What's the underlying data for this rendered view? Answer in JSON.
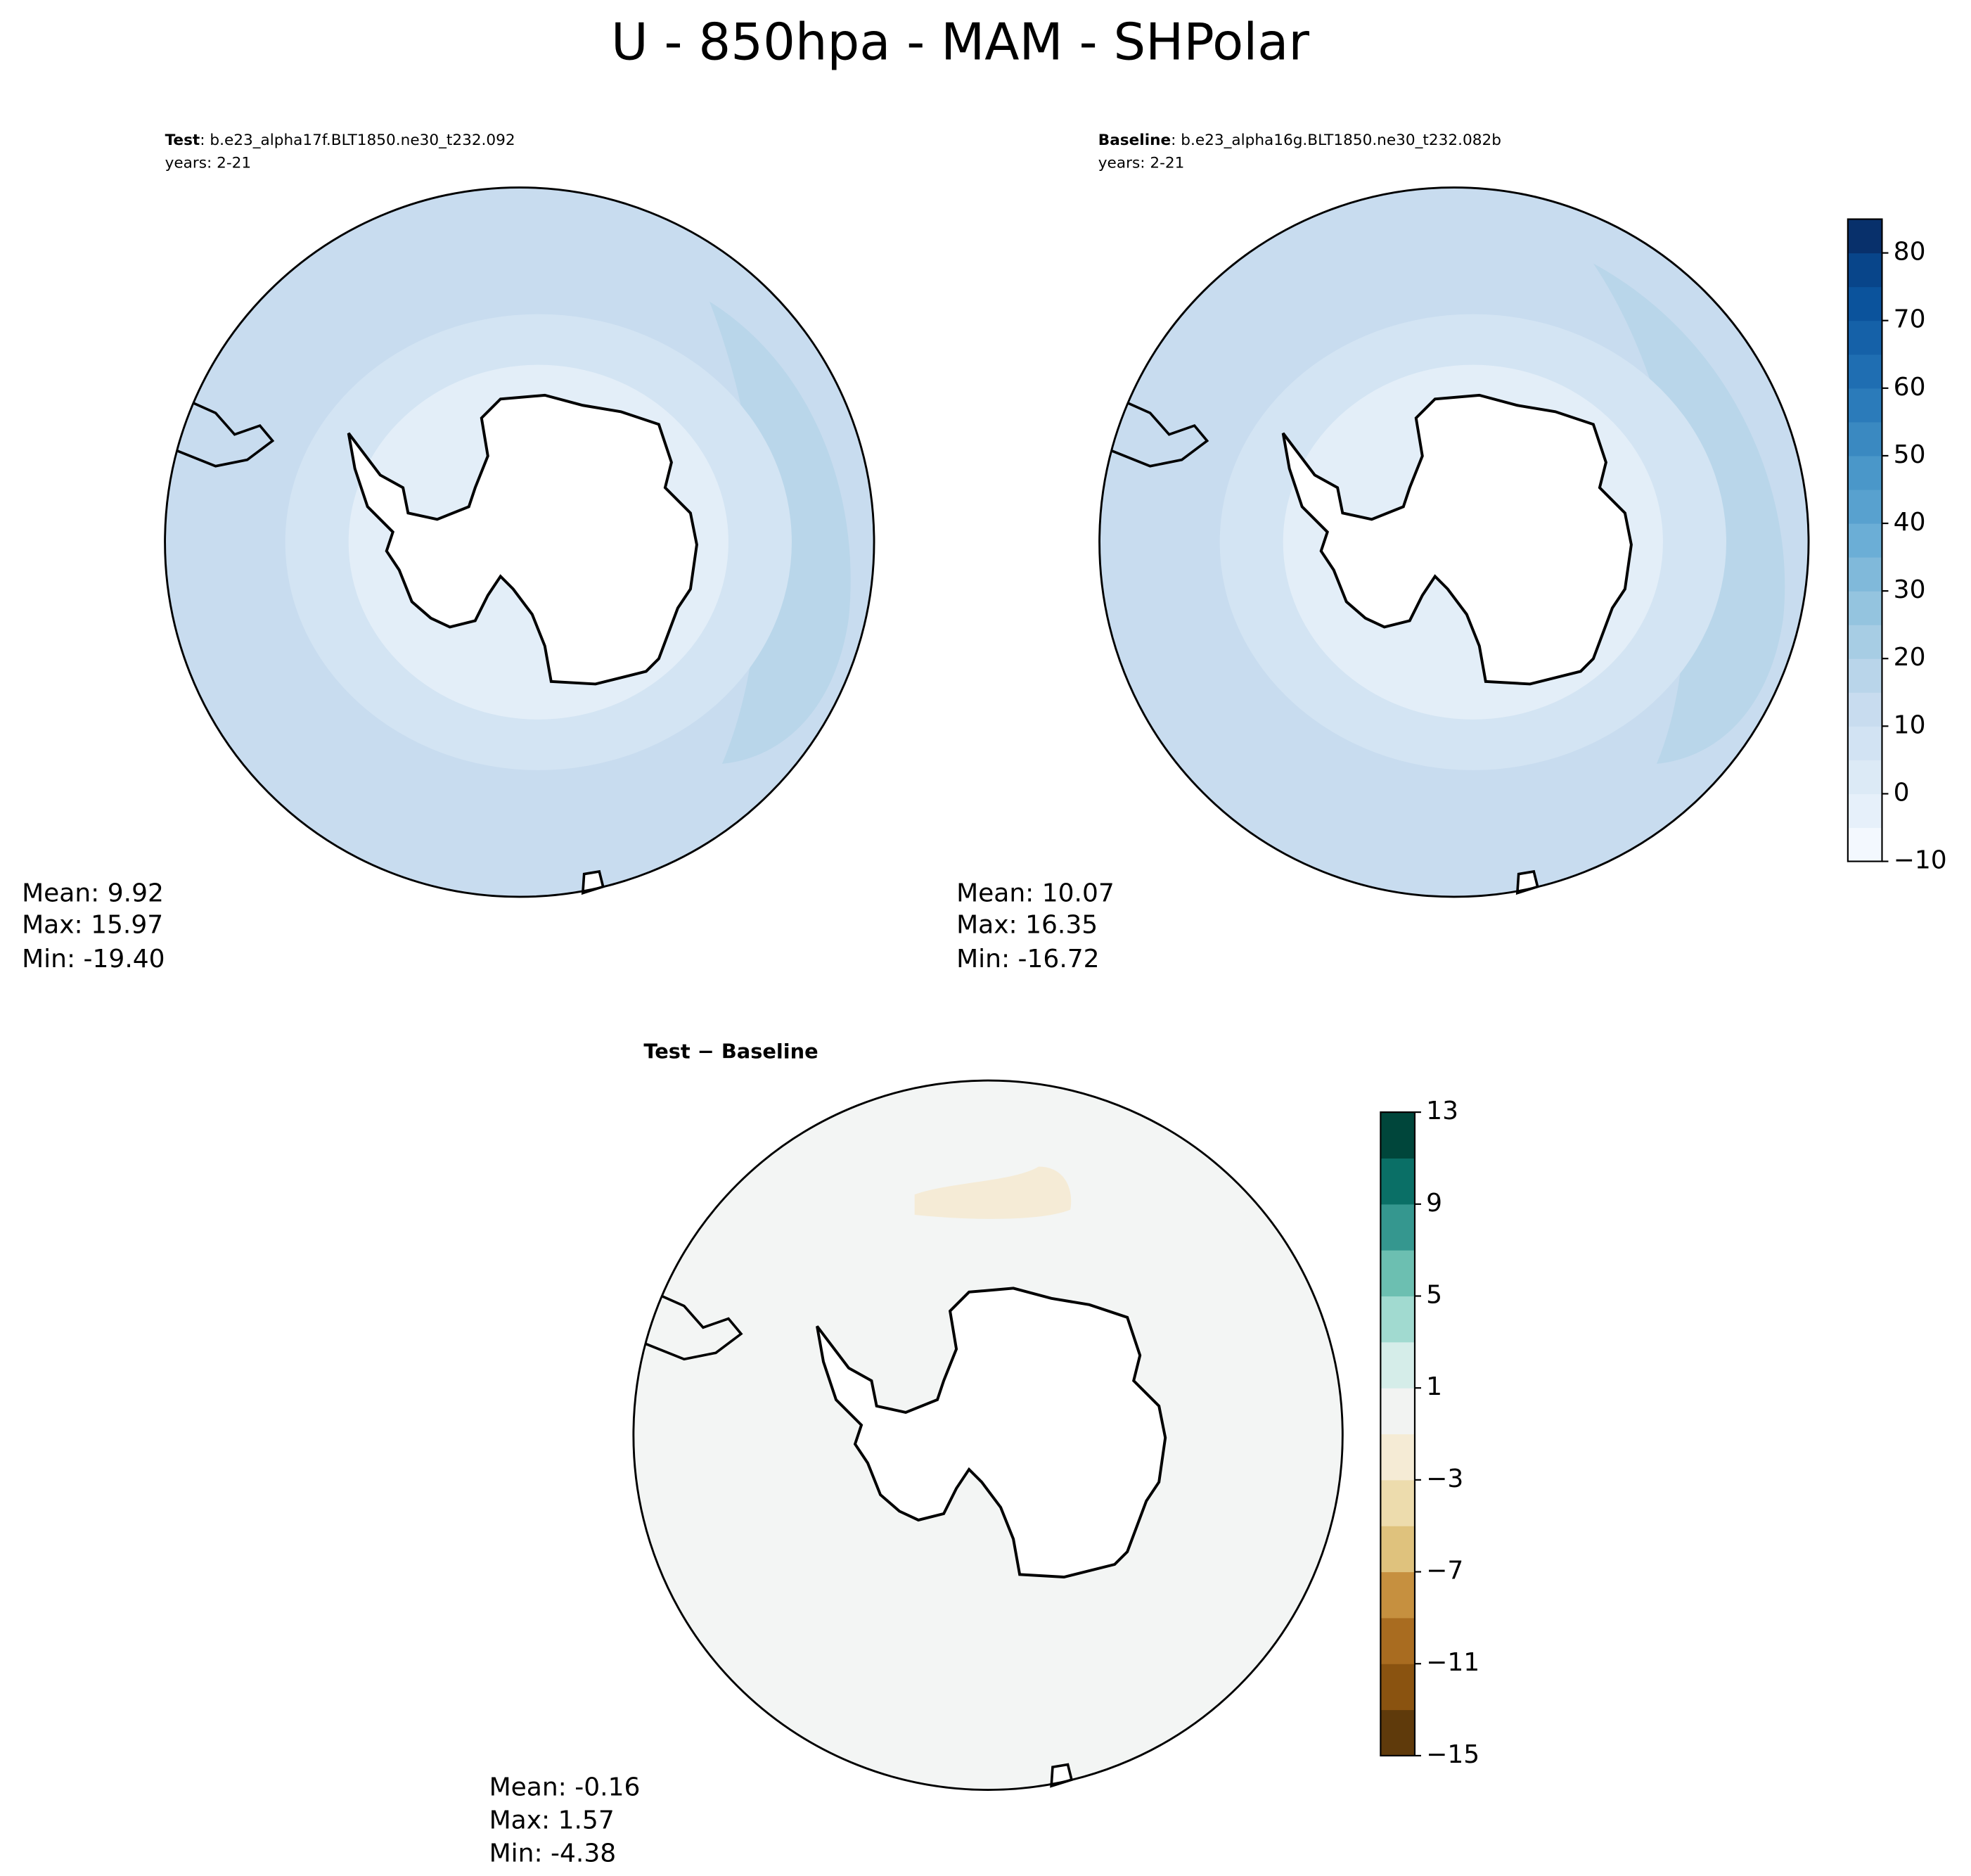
{
  "title": "U - 850hpa - MAM - SHPolar",
  "panels": [
    {
      "label": "Test",
      "case": ": b.e23_alpha17f.BLT1850.ne30_t232.092",
      "years": "years: 2-21",
      "stats": [
        "Mean:  9.92",
        "Max: 15.97",
        "Min: -19.40"
      ]
    },
    {
      "label": "Baseline",
      "case": ": b.e23_alpha16g.BLT1850.ne30_t232.082b",
      "years": "years: 2-21",
      "stats": [
        "Mean: 10.07",
        "Max: 16.35",
        "Min: -16.72"
      ]
    },
    {
      "label": "Test − Baseline",
      "stats": [
        "Mean: -0.16",
        "Max:  1.57",
        "Min: -4.38"
      ]
    }
  ],
  "colorbars": [
    {
      "ylim": [
        -10,
        85
      ],
      "yticks": [
        {
          "value": -10,
          "label": "−10"
        },
        0,
        10,
        20,
        30,
        40,
        50,
        60,
        70,
        80
      ],
      "levels": [
        -10,
        -5,
        0,
        5,
        10,
        15,
        20,
        25,
        30,
        35,
        40,
        45,
        50,
        55,
        60,
        65,
        70,
        75,
        80,
        85
      ],
      "colors": [
        "#f3f8fe",
        "#e6f0fa",
        "#dceaf6",
        "#d2e3f3",
        "#c8dcef",
        "#b9d5ea",
        "#a7cde4",
        "#94c4df",
        "#80b9da",
        "#6baed6",
        "#58a1cf",
        "#4a97c9",
        "#3a89c1",
        "#2b7bba",
        "#1f6eb2",
        "#1561a8",
        "#0b539c",
        "#08458a",
        "#08306b"
      ]
    },
    {
      "ylim": [
        -15,
        13
      ],
      "yticks": [
        {
          "value": -15,
          "label": "−15"
        },
        {
          "value": -11,
          "label": "−11"
        },
        {
          "value": -7,
          "label": "−7"
        },
        {
          "value": -3,
          "label": "−3"
        },
        1,
        5,
        9,
        13
      ],
      "levels": [
        -15,
        -13,
        -11,
        -9,
        -7,
        -5,
        -3,
        -1,
        1,
        3,
        5,
        7,
        9,
        11,
        13
      ],
      "colors": [
        "#5f3a0b",
        "#8a5310",
        "#a96c20",
        "#c6903f",
        "#dfc27d",
        "#eddcad",
        "#f5ebd5",
        "#f2f3f2",
        "#d5ede9",
        "#a1dad0",
        "#6cbfb1",
        "#35978f",
        "#0a6f66",
        "#00463b"
      ]
    }
  ]
}
